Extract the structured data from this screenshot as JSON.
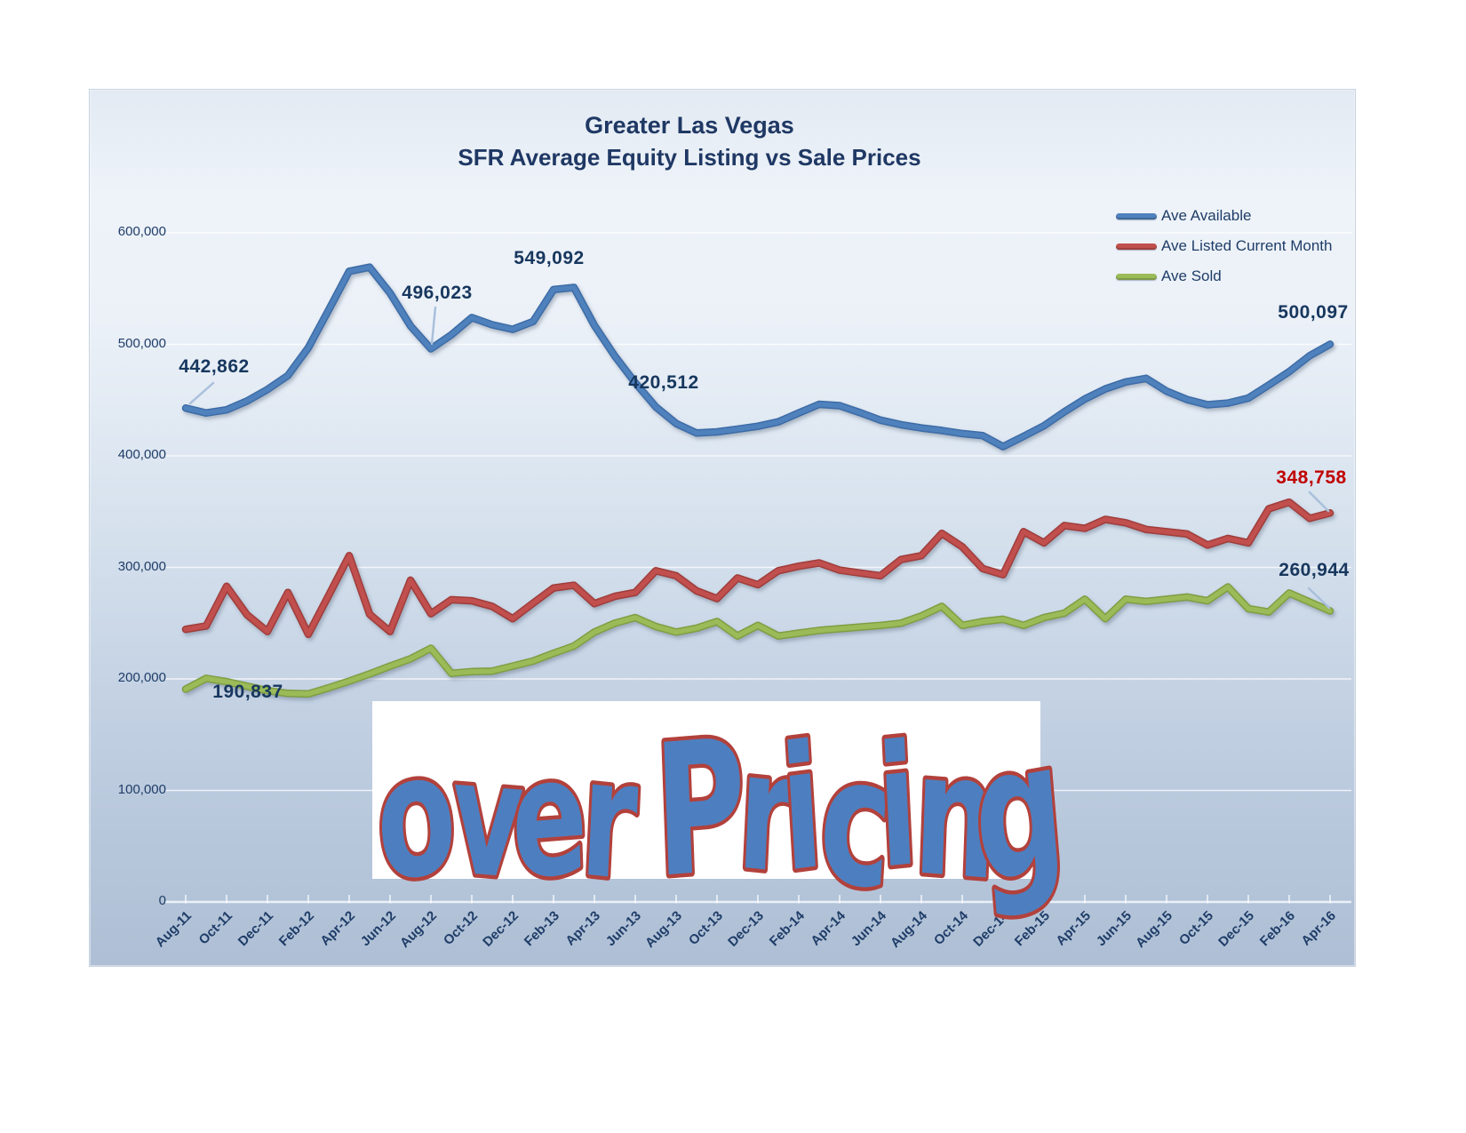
{
  "title": {
    "line1": "Greater Las Vegas",
    "line2": "SFR Average Equity Listing vs Sale Prices"
  },
  "legend": {
    "items": [
      {
        "label": "Ave Available",
        "color": "#4f81bd",
        "edge": "#3d6ca6"
      },
      {
        "label": "Ave Listed Current Month",
        "color": "#c0504d",
        "edge": "#9f3e3b"
      },
      {
        "label": "Ave Sold",
        "color": "#9bbb59",
        "edge": "#7f9e42"
      }
    ]
  },
  "watermark": {
    "text": "over Pricing",
    "fill_color": "#4d7fc0",
    "outline_color": "#b2413c",
    "box_color": "#ffffff"
  },
  "chart_data": {
    "type": "line",
    "title": "Greater Las Vegas — SFR Average Equity Listing vs Sale Prices",
    "xlabel": "",
    "ylabel": "",
    "ylim": [
      0,
      600000
    ],
    "grid": true,
    "legend_position": "top-right",
    "x": [
      "Aug-11",
      "Sep-11",
      "Oct-11",
      "Nov-11",
      "Dec-11",
      "Jan-12",
      "Feb-12",
      "Mar-12",
      "Apr-12",
      "May-12",
      "Jun-12",
      "Jul-12",
      "Aug-12",
      "Sep-12",
      "Oct-12",
      "Nov-12",
      "Dec-12",
      "Jan-13",
      "Feb-13",
      "Mar-13",
      "Apr-13",
      "May-13",
      "Jun-13",
      "Jul-13",
      "Aug-13",
      "Sep-13",
      "Oct-13",
      "Nov-13",
      "Dec-13",
      "Jan-14",
      "Feb-14",
      "Mar-14",
      "Apr-14",
      "May-14",
      "Jun-14",
      "Jul-14",
      "Aug-14",
      "Sep-14",
      "Oct-14",
      "Nov-14",
      "Dec-14",
      "Jan-15",
      "Feb-15",
      "Mar-15",
      "Apr-15",
      "May-15",
      "Jun-15",
      "Jul-15",
      "Aug-15",
      "Sep-15",
      "Oct-15",
      "Nov-15",
      "Dec-15",
      "Jan-16",
      "Feb-16",
      "Mar-16",
      "Apr-16"
    ],
    "x_tick_labels": [
      "Aug-11",
      "Oct-11",
      "Dec-11",
      "Feb-12",
      "Apr-12",
      "Jun-12",
      "Aug-12",
      "Oct-12",
      "Dec-12",
      "Feb-13",
      "Apr-13",
      "Jun-13",
      "Aug-13",
      "Oct-13",
      "Dec-13",
      "Feb-14",
      "Apr-14",
      "Jun-14",
      "Aug-14",
      "Oct-14",
      "Dec-14",
      "Feb-15",
      "Apr-15",
      "Jun-15",
      "Aug-15",
      "Oct-15",
      "Dec-15",
      "Feb-16",
      "Apr-16"
    ],
    "y_ticks": [
      {
        "value": 600000,
        "label": "600,000"
      },
      {
        "value": 500000,
        "label": "500,000"
      },
      {
        "value": 400000,
        "label": "400,000"
      },
      {
        "value": 300000,
        "label": "300,000"
      },
      {
        "value": 200000,
        "label": "200,000"
      },
      {
        "value": 100000,
        "label": "100,000"
      },
      {
        "value": 0,
        "label": "0"
      }
    ],
    "series": [
      {
        "name": "Ave Available",
        "color": "#4f81bd",
        "edge": "#3d6ca6",
        "values": [
          442862,
          438500,
          441300,
          449200,
          459500,
          472000,
          497000,
          531000,
          565500,
          569200,
          546000,
          516500,
          496023,
          508500,
          524000,
          517500,
          513500,
          520500,
          549092,
          551000,
          517000,
          489500,
          465500,
          444000,
          429000,
          420512,
          421500,
          424000,
          426500,
          430500,
          438500,
          446200,
          445000,
          438800,
          432000,
          428000,
          425000,
          422800,
          420000,
          418200,
          408300,
          417500,
          427000,
          439500,
          451000,
          460000,
          466300,
          469500,
          458000,
          450500,
          445800,
          447300,
          451800,
          463500,
          475500,
          489800,
          500097
        ]
      },
      {
        "name": "Ave Listed Current Month",
        "color": "#c0504d",
        "edge": "#9f3e3b",
        "values": [
          244500,
          247500,
          283000,
          257500,
          242500,
          277500,
          240000,
          275000,
          310500,
          258000,
          242500,
          288500,
          258500,
          271000,
          270000,
          265000,
          254000,
          268000,
          281500,
          284000,
          267500,
          274000,
          277500,
          297000,
          292500,
          279000,
          272000,
          290500,
          284500,
          297000,
          301000,
          304000,
          297500,
          295000,
          292500,
          307000,
          310500,
          330500,
          318500,
          299000,
          293500,
          332000,
          322000,
          337500,
          335000,
          343000,
          340000,
          334000,
          332000,
          330000,
          320000,
          326000,
          322000,
          352500,
          358500,
          344000,
          348758
        ]
      },
      {
        "name": "Ave Sold",
        "color": "#9bbb59",
        "edge": "#7f9e42",
        "values": [
          190837,
          200500,
          197500,
          193500,
          189500,
          187000,
          186500,
          192000,
          198000,
          204500,
          211500,
          218000,
          227500,
          205000,
          206500,
          207000,
          211500,
          216000,
          223000,
          229500,
          242000,
          250000,
          255000,
          247000,
          242000,
          245500,
          251500,
          238500,
          248000,
          238500,
          241000,
          243500,
          245000,
          246500,
          248000,
          250000,
          256500,
          265000,
          248000,
          251500,
          253500,
          248000,
          255000,
          259000,
          271500,
          254000,
          271500,
          269500,
          271500,
          273500,
          270000,
          282500,
          263000,
          260000,
          277000,
          269000,
          260944
        ]
      }
    ],
    "callouts": [
      {
        "text": "442,862",
        "series": "Ave Available",
        "month": "Aug-11",
        "color": "#17375e"
      },
      {
        "text": "496,023",
        "series": "Ave Available",
        "month": "Aug-12",
        "color": "#17375e"
      },
      {
        "text": "549,092",
        "series": "Ave Available",
        "month": "Feb-13",
        "color": "#17375e"
      },
      {
        "text": "420,512",
        "series": "Ave Available",
        "month": "Sep-13",
        "color": "#17375e"
      },
      {
        "text": "500,097",
        "series": "Ave Available",
        "month": "Apr-16",
        "color": "#17375e"
      },
      {
        "text": "348,758",
        "series": "Ave Listed Current Month",
        "month": "Apr-16",
        "color": "#c00000"
      },
      {
        "text": "260,944",
        "series": "Ave Sold",
        "month": "Apr-16",
        "color": "#17375e"
      },
      {
        "text": "190,837",
        "series": "Ave Sold",
        "month": "Aug-11",
        "color": "#17375e"
      }
    ]
  }
}
